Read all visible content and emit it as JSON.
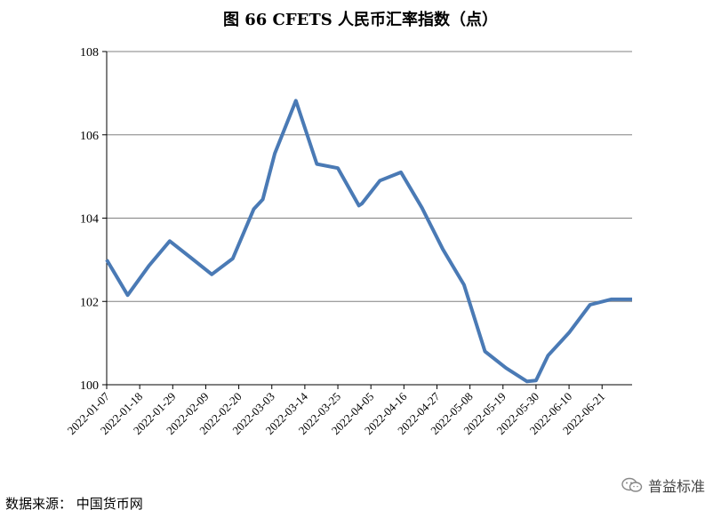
{
  "source_text": "数据来源：  中国货币网",
  "watermark_text": "普益标准",
  "chart_data": {
    "type": "line",
    "title": "图 66 CFETS 人民币汇率指数（点）",
    "xlabel": "",
    "ylabel": "",
    "ylim": [
      100,
      108
    ],
    "yticks": [
      "100",
      "102",
      "104",
      "106",
      "108"
    ],
    "xticks": [
      "2022-01-07",
      "2022-01-18",
      "2022-01-29",
      "2022-02-09",
      "2022-02-20",
      "2022-03-03",
      "2022-03-14",
      "2022-03-25",
      "2022-04-05",
      "2022-04-16",
      "2022-04-27",
      "2022-05-08",
      "2022-05-19",
      "2022-05-30",
      "2022-06-10",
      "2022-06-21"
    ],
    "grid": true,
    "legend": "none",
    "color": "#4a7ab5",
    "series": [
      {
        "x": [
          "2022-01-07",
          "2022-01-14",
          "2022-01-21",
          "2022-01-28",
          "2022-02-04",
          "2022-02-11",
          "2022-02-18",
          "2022-02-25",
          "2022-02-28",
          "2022-03-04",
          "2022-03-11",
          "2022-03-18",
          "2022-03-25",
          "2022-04-01",
          "2022-04-02",
          "2022-04-08",
          "2022-04-15",
          "2022-04-22",
          "2022-04-29",
          "2022-05-06",
          "2022-05-13",
          "2022-05-20",
          "2022-05-27",
          "2022-05-30",
          "2022-06-03",
          "2022-06-10",
          "2022-06-17",
          "2022-06-24",
          "2022-07-01"
        ],
        "y": [
          103.0,
          102.15,
          102.85,
          103.45,
          103.05,
          102.65,
          103.03,
          104.22,
          104.45,
          105.55,
          106.82,
          105.3,
          105.2,
          104.3,
          104.35,
          104.9,
          105.1,
          104.25,
          103.25,
          102.4,
          100.8,
          100.4,
          100.08,
          100.1,
          100.7,
          101.25,
          101.92,
          102.05,
          102.05
        ]
      }
    ]
  }
}
